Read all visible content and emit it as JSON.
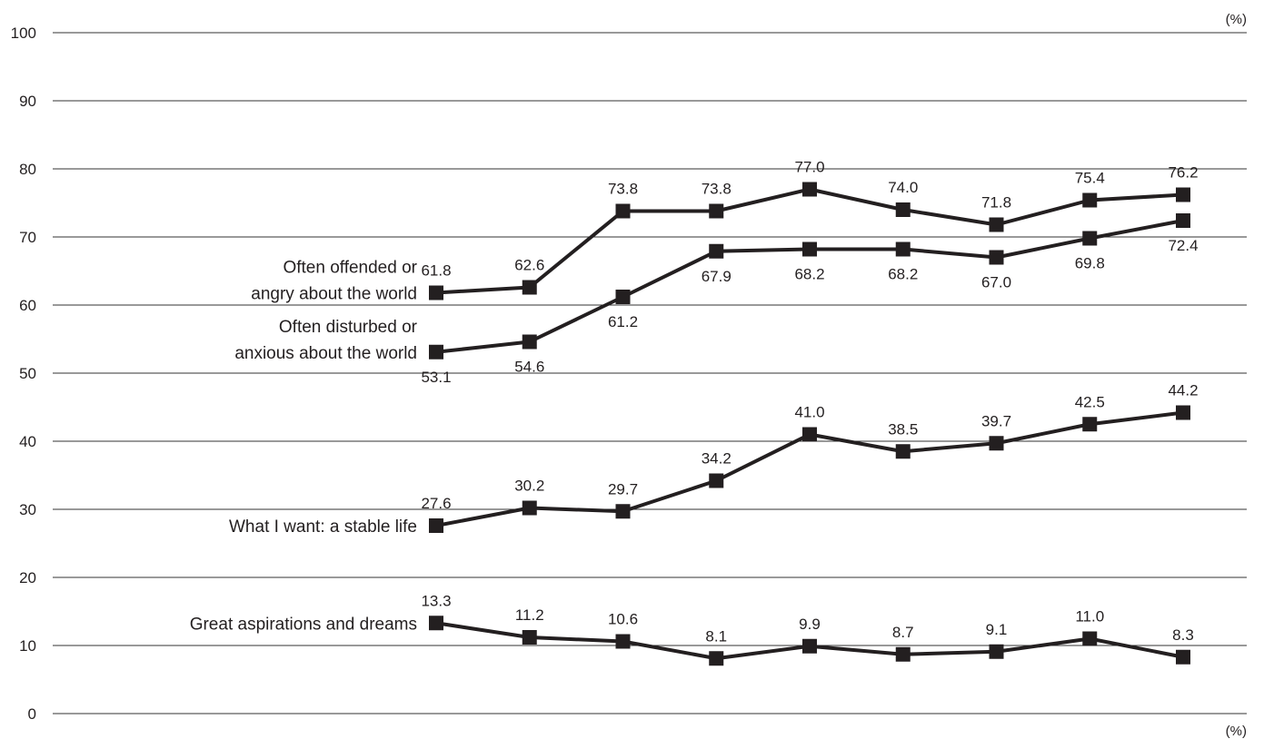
{
  "chart_data": {
    "type": "line",
    "title": "",
    "xlabel": "",
    "ylabel": "",
    "y_unit_top": "(%)",
    "y_unit_bottom": "(%)",
    "ylim": [
      0,
      100
    ],
    "yticks": [
      0,
      10,
      20,
      30,
      40,
      50,
      60,
      70,
      80,
      90,
      100
    ],
    "grid": true,
    "legend": "none",
    "x": [
      1,
      2,
      3,
      4,
      5,
      6,
      7,
      8,
      9
    ],
    "colors": {
      "line": "#231f20",
      "grid": "#333333",
      "text": "#231f20"
    },
    "series": [
      {
        "name_lines": [
          "Often offended or",
          "angry about the world"
        ],
        "values": [
          61.8,
          62.6,
          73.8,
          73.8,
          77.0,
          74.0,
          71.8,
          75.4,
          76.2
        ],
        "labels": [
          "61.8",
          "62.6",
          "73.8",
          "73.8",
          "77.0",
          "74.0",
          "71.8",
          "75.4",
          "76.2"
        ],
        "label_pos": [
          "above",
          "above",
          "above",
          "above",
          "above",
          "above",
          "above",
          "above",
          "above"
        ]
      },
      {
        "name_lines": [
          "Often disturbed or",
          "anxious about the world"
        ],
        "values": [
          53.1,
          54.6,
          61.2,
          67.9,
          68.2,
          68.2,
          67.0,
          69.8,
          72.4
        ],
        "labels": [
          "53.1",
          "54.6",
          "61.2",
          "67.9",
          "68.2",
          "68.2",
          "67.0",
          "69.8",
          "72.4"
        ],
        "label_pos": [
          "below",
          "below",
          "below",
          "below",
          "below",
          "below",
          "below",
          "below",
          "below"
        ]
      },
      {
        "name_lines": [
          "What I want: a stable life"
        ],
        "values": [
          27.6,
          30.2,
          29.7,
          34.2,
          41.0,
          38.5,
          39.7,
          42.5,
          44.2
        ],
        "labels": [
          "27.6",
          "30.2",
          "29.7",
          "34.2",
          "41.0",
          "38.5",
          "39.7",
          "42.5",
          "44.2"
        ],
        "label_pos": [
          "above",
          "above",
          "above",
          "above",
          "above",
          "above",
          "above",
          "above",
          "above"
        ]
      },
      {
        "name_lines": [
          "Great aspirations and dreams"
        ],
        "values": [
          13.3,
          11.2,
          10.6,
          8.1,
          9.9,
          8.7,
          9.1,
          11.0,
          8.3
        ],
        "labels": [
          "13.3",
          "11.2",
          "10.6",
          "8.1",
          "9.9",
          "8.7",
          "9.1",
          "11.0",
          "8.3"
        ],
        "label_pos": [
          "above",
          "above",
          "above",
          "above",
          "above",
          "above",
          "above",
          "above",
          "above"
        ]
      }
    ]
  }
}
